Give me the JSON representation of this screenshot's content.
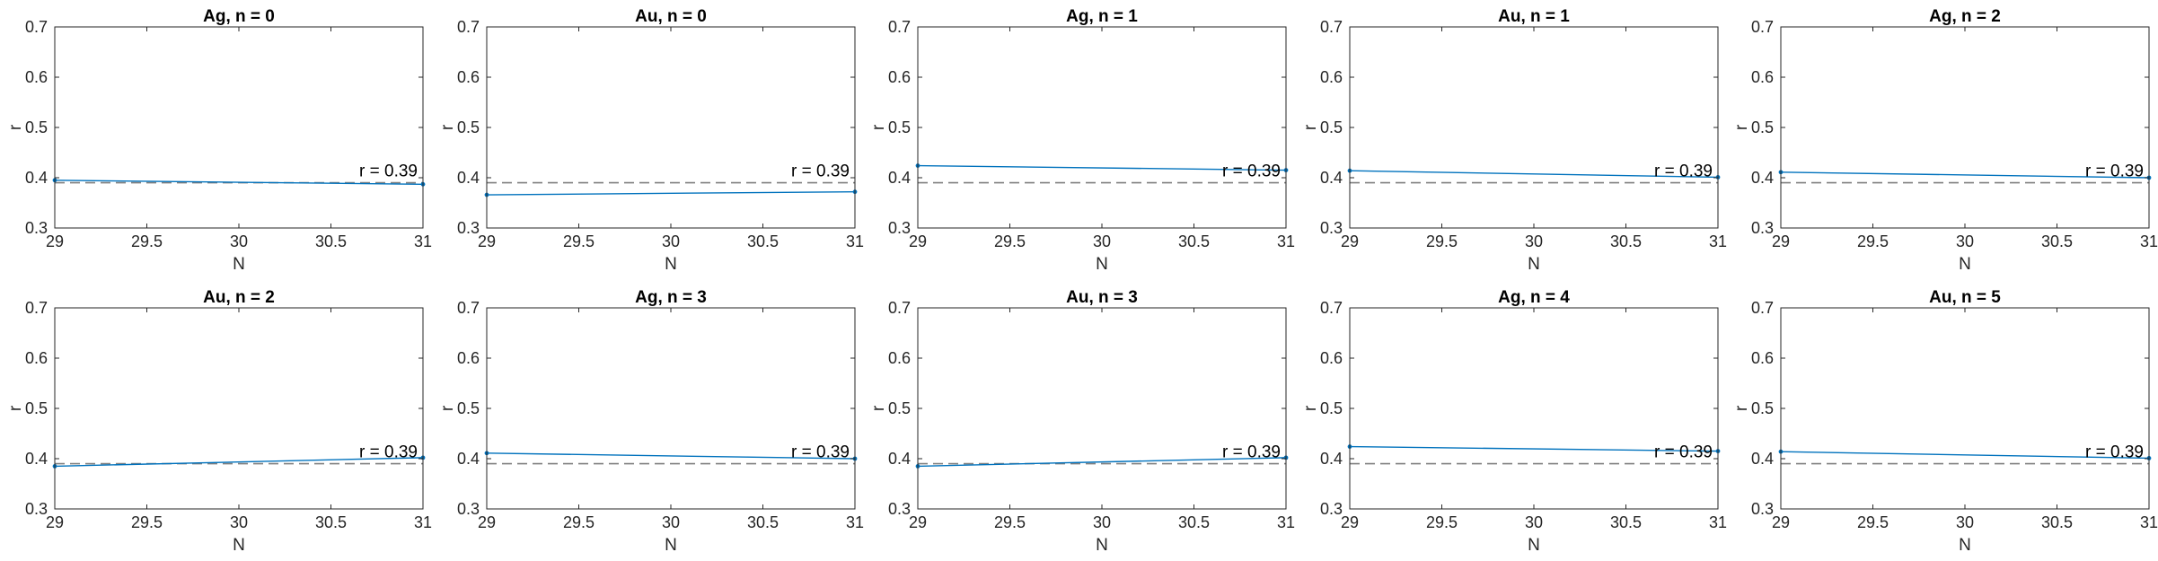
{
  "chart_data": [
    {
      "type": "line",
      "title": "Ag, n = 0",
      "xlabel": "N",
      "ylabel": "r",
      "xlim": [
        29,
        31
      ],
      "ylim": [
        0.3,
        0.7
      ],
      "xticks": [
        "29",
        "29.5",
        "30",
        "30.5",
        "31"
      ],
      "yticks": [
        "0.3",
        "0.4",
        "0.5",
        "0.6",
        "0.7"
      ],
      "series": [
        {
          "x": [
            29,
            31
          ],
          "y": [
            0.395,
            0.387
          ],
          "color": "#0072bd"
        }
      ],
      "reference_line": {
        "y": 0.39,
        "style": "dashed",
        "color": "#808080"
      },
      "annotation": "r = 0.39",
      "grid": false
    },
    {
      "type": "line",
      "title": "Au, n = 0",
      "xlabel": "N",
      "ylabel": "r",
      "xlim": [
        29,
        31
      ],
      "ylim": [
        0.3,
        0.7
      ],
      "xticks": [
        "29",
        "29.5",
        "30",
        "30.5",
        "31"
      ],
      "yticks": [
        "0.3",
        "0.4",
        "0.5",
        "0.6",
        "0.7"
      ],
      "series": [
        {
          "x": [
            29,
            31
          ],
          "y": [
            0.366,
            0.372
          ],
          "color": "#0072bd"
        }
      ],
      "reference_line": {
        "y": 0.39,
        "style": "dashed",
        "color": "#808080"
      },
      "annotation": "r = 0.39",
      "grid": false
    },
    {
      "type": "line",
      "title": "Ag, n = 1",
      "xlabel": "N",
      "ylabel": "r",
      "xlim": [
        29,
        31
      ],
      "ylim": [
        0.3,
        0.7
      ],
      "xticks": [
        "29",
        "29.5",
        "30",
        "30.5",
        "31"
      ],
      "yticks": [
        "0.3",
        "0.4",
        "0.5",
        "0.6",
        "0.7"
      ],
      "series": [
        {
          "x": [
            29,
            31
          ],
          "y": [
            0.424,
            0.415
          ],
          "color": "#0072bd"
        }
      ],
      "reference_line": {
        "y": 0.39,
        "style": "dashed",
        "color": "#808080"
      },
      "annotation": "r = 0.39",
      "grid": false
    },
    {
      "type": "line",
      "title": "Au, n = 1",
      "xlabel": "N",
      "ylabel": "r",
      "xlim": [
        29,
        31
      ],
      "ylim": [
        0.3,
        0.7
      ],
      "xticks": [
        "29",
        "29.5",
        "30",
        "30.5",
        "31"
      ],
      "yticks": [
        "0.3",
        "0.4",
        "0.5",
        "0.6",
        "0.7"
      ],
      "series": [
        {
          "x": [
            29,
            31
          ],
          "y": [
            0.414,
            0.401
          ],
          "color": "#0072bd"
        }
      ],
      "reference_line": {
        "y": 0.39,
        "style": "dashed",
        "color": "#808080"
      },
      "annotation": "r = 0.39",
      "grid": false
    },
    {
      "type": "line",
      "title": "Ag, n = 2",
      "xlabel": "N",
      "ylabel": "r",
      "xlim": [
        29,
        31
      ],
      "ylim": [
        0.3,
        0.7
      ],
      "xticks": [
        "29",
        "29.5",
        "30",
        "30.5",
        "31"
      ],
      "yticks": [
        "0.3",
        "0.4",
        "0.5",
        "0.6",
        "0.7"
      ],
      "series": [
        {
          "x": [
            29,
            31
          ],
          "y": [
            0.411,
            0.4
          ],
          "color": "#0072bd"
        }
      ],
      "reference_line": {
        "y": 0.39,
        "style": "dashed",
        "color": "#808080"
      },
      "annotation": "r = 0.39",
      "grid": false
    },
    {
      "type": "line",
      "title": "Au, n = 2",
      "xlabel": "N",
      "ylabel": "r",
      "xlim": [
        29,
        31
      ],
      "ylim": [
        0.3,
        0.7
      ],
      "xticks": [
        "29",
        "29.5",
        "30",
        "30.5",
        "31"
      ],
      "yticks": [
        "0.3",
        "0.4",
        "0.5",
        "0.6",
        "0.7"
      ],
      "series": [
        {
          "x": [
            29,
            31
          ],
          "y": [
            0.385,
            0.402
          ],
          "color": "#0072bd"
        }
      ],
      "reference_line": {
        "y": 0.39,
        "style": "dashed",
        "color": "#808080"
      },
      "annotation": "r = 0.39",
      "grid": false
    },
    {
      "type": "line",
      "title": "Ag, n = 3",
      "xlabel": "N",
      "ylabel": "r",
      "xlim": [
        29,
        31
      ],
      "ylim": [
        0.3,
        0.7
      ],
      "xticks": [
        "29",
        "29.5",
        "30",
        "30.5",
        "31"
      ],
      "yticks": [
        "0.3",
        "0.4",
        "0.5",
        "0.6",
        "0.7"
      ],
      "series": [
        {
          "x": [
            29,
            31
          ],
          "y": [
            0.411,
            0.4
          ],
          "color": "#0072bd"
        }
      ],
      "reference_line": {
        "y": 0.39,
        "style": "dashed",
        "color": "#808080"
      },
      "annotation": "r = 0.39",
      "grid": false
    },
    {
      "type": "line",
      "title": "Au, n = 3",
      "xlabel": "N",
      "ylabel": "r",
      "xlim": [
        29,
        31
      ],
      "ylim": [
        0.3,
        0.7
      ],
      "xticks": [
        "29",
        "29.5",
        "30",
        "30.5",
        "31"
      ],
      "yticks": [
        "0.3",
        "0.4",
        "0.5",
        "0.6",
        "0.7"
      ],
      "series": [
        {
          "x": [
            29,
            31
          ],
          "y": [
            0.385,
            0.402
          ],
          "color": "#0072bd"
        }
      ],
      "reference_line": {
        "y": 0.39,
        "style": "dashed",
        "color": "#808080"
      },
      "annotation": "r = 0.39",
      "grid": false
    },
    {
      "type": "line",
      "title": "Ag, n = 4",
      "xlabel": "N",
      "ylabel": "r",
      "xlim": [
        29,
        31
      ],
      "ylim": [
        0.3,
        0.7
      ],
      "xticks": [
        "29",
        "29.5",
        "30",
        "30.5",
        "31"
      ],
      "yticks": [
        "0.3",
        "0.4",
        "0.5",
        "0.6",
        "0.7"
      ],
      "series": [
        {
          "x": [
            29,
            31
          ],
          "y": [
            0.424,
            0.415
          ],
          "color": "#0072bd"
        }
      ],
      "reference_line": {
        "y": 0.39,
        "style": "dashed",
        "color": "#808080"
      },
      "annotation": "r = 0.39",
      "grid": false
    },
    {
      "type": "line",
      "title": "Au, n = 5",
      "xlabel": "N",
      "ylabel": "r",
      "xlim": [
        29,
        31
      ],
      "ylim": [
        0.3,
        0.7
      ],
      "xticks": [
        "29",
        "29.5",
        "30",
        "30.5",
        "31"
      ],
      "yticks": [
        "0.3",
        "0.4",
        "0.5",
        "0.6",
        "0.7"
      ],
      "series": [
        {
          "x": [
            29,
            31
          ],
          "y": [
            0.414,
            0.401
          ],
          "color": "#0072bd"
        }
      ],
      "reference_line": {
        "y": 0.39,
        "style": "dashed",
        "color": "#808080"
      },
      "annotation": "r = 0.39",
      "grid": false
    }
  ]
}
